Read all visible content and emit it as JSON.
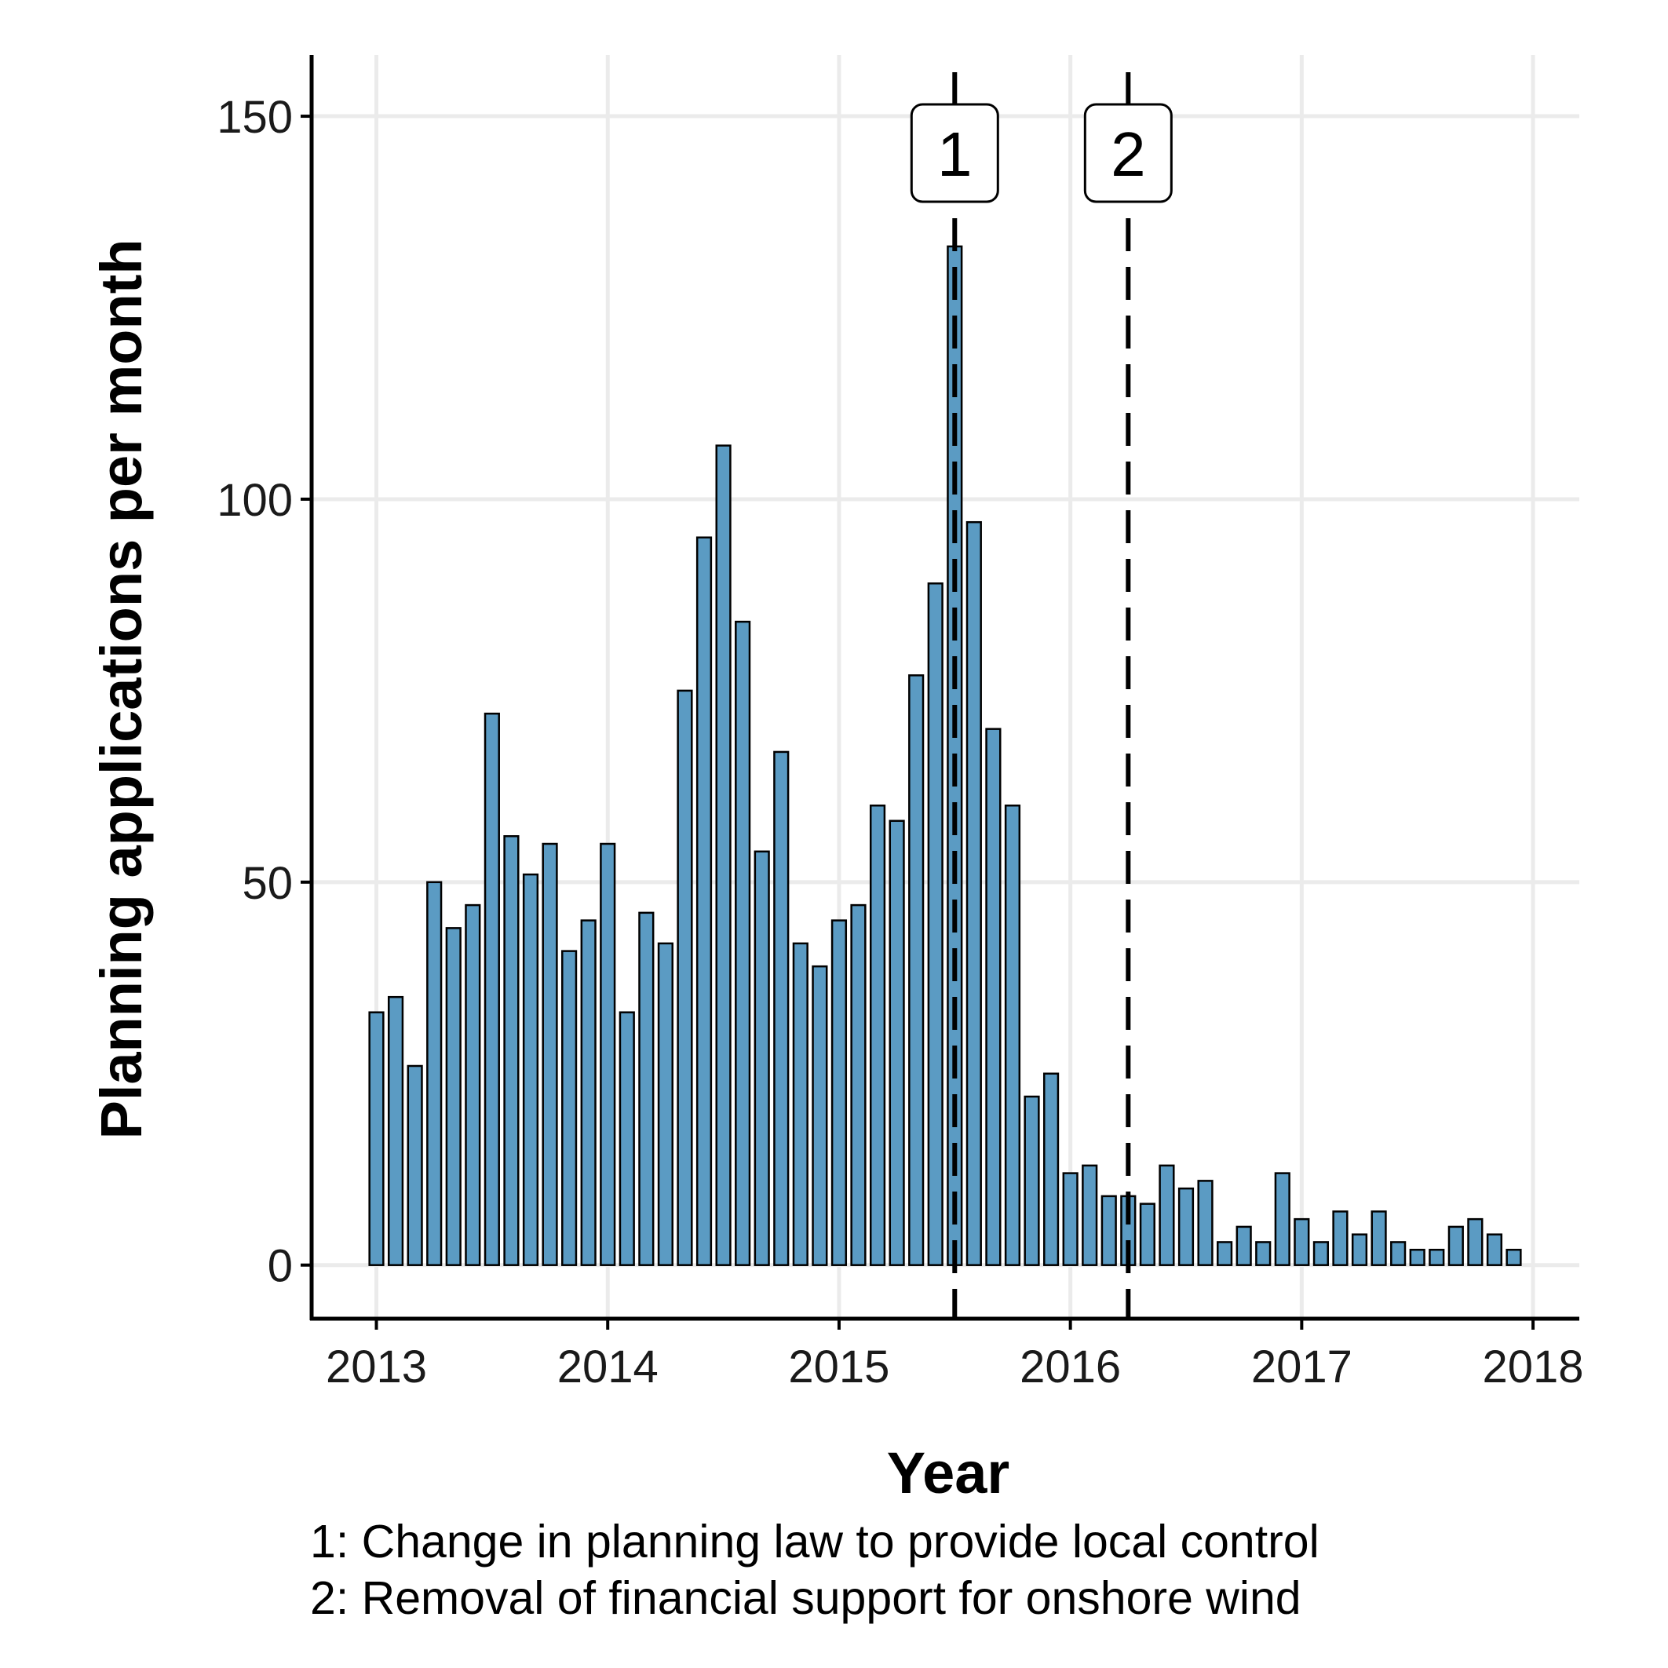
{
  "chart_data": {
    "type": "bar",
    "title": "",
    "xlabel": "Year",
    "ylabel": "Planning applications per month",
    "ylim": [
      -7,
      158
    ],
    "xlim": [
      2012.72,
      2018.2
    ],
    "yticks": [
      0,
      50,
      100,
      150
    ],
    "xticks": [
      2013,
      2014,
      2015,
      2016,
      2017,
      2018
    ],
    "grid": true,
    "bar_color": "#5b9bc3",
    "series": [
      {
        "start": "2013-01",
        "values": [
          33,
          35,
          26,
          50,
          44,
          47,
          72,
          56,
          51,
          55,
          41,
          45,
          55,
          33,
          46,
          42,
          75,
          95,
          107,
          84,
          54,
          67,
          42,
          39,
          45,
          47,
          60,
          58,
          77,
          89,
          133,
          97,
          70,
          60,
          22,
          25,
          12,
          13,
          9,
          9,
          8,
          13,
          10,
          11,
          3,
          5,
          3,
          12,
          6,
          3,
          7,
          4,
          7,
          3,
          2,
          2,
          5,
          6,
          4,
          2
        ]
      }
    ],
    "annotations": [
      {
        "label": "1",
        "x": 2015.5
      },
      {
        "label": "2",
        "x": 2016.25
      }
    ]
  },
  "footnotes": [
    "1: Change in planning law to provide local control",
    "2: Removal of financial support for onshore wind"
  ]
}
